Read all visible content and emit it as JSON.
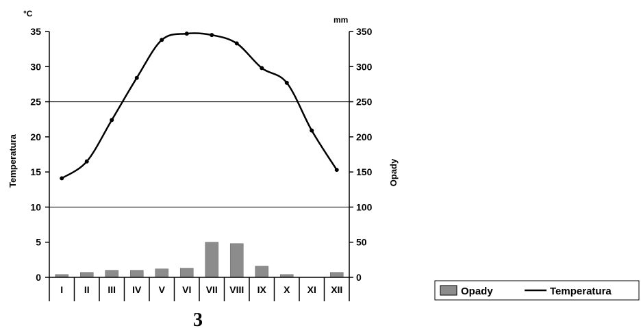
{
  "figure_number": "3",
  "chart_data": {
    "type": "bar+line",
    "categories": [
      "I",
      "II",
      "III",
      "IV",
      "V",
      "VI",
      "VII",
      "VIII",
      "IX",
      "X",
      "XI",
      "XII"
    ],
    "left_axis": {
      "title": "Temperatura",
      "unit": "°C",
      "ylim": [
        0,
        35
      ],
      "ticks": [
        0,
        5,
        10,
        15,
        20,
        25,
        30,
        35
      ]
    },
    "right_axis": {
      "title": "Opady",
      "unit": "mm",
      "ylim": [
        0,
        350
      ],
      "ticks": [
        0,
        50,
        100,
        150,
        200,
        250,
        300,
        350
      ]
    },
    "gridlines_at_left": [
      10,
      25
    ],
    "series": [
      {
        "name": "Opady",
        "type": "bar",
        "axis": "right",
        "color": "#8c8c8c",
        "values": [
          4,
          7,
          10,
          10,
          12,
          13,
          50,
          48,
          16,
          4,
          0,
          7
        ]
      },
      {
        "name": "Temperatura",
        "type": "line",
        "axis": "left",
        "color": "#000000",
        "values": [
          14.1,
          16.5,
          22.4,
          28.4,
          33.8,
          34.7,
          34.5,
          33.3,
          29.8,
          27.7,
          20.9,
          15.3
        ]
      }
    ],
    "legend_position": "bottom-right"
  }
}
